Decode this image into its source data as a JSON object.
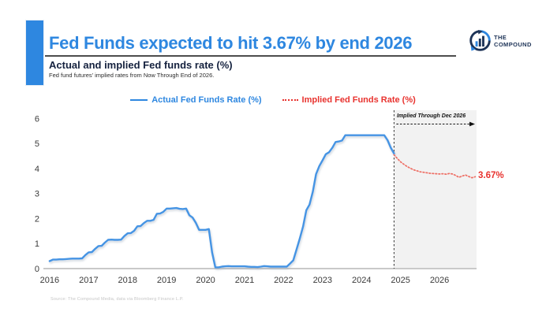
{
  "header": {
    "title": "Fed Funds expected to hit 3.67% by end 2026",
    "subtitle": "Actual and implied Fed funds rate (%)",
    "description": "Fed fund futures' implied rates from Now Through End of 2026."
  },
  "logo": {
    "line1": "THE",
    "line2": "COMPOUND"
  },
  "legend": {
    "actual_label": "Actual Fed Funds Rate (%)",
    "implied_label": "Implied Fed Funds Rate (%)"
  },
  "annotation": {
    "region_label": "Implied Through Dec 2026",
    "end_label": "3.67%"
  },
  "source": "Source: The Compound Media, data via Bloomberg Finance L.P.",
  "colors": {
    "accent_blue": "#2e87e0",
    "line_blue": "#4494e4",
    "label_red": "#e8322e",
    "dotted_red": "#ee6e64",
    "navy": "#15223f",
    "region_gray": "#f2f2f2",
    "axis_gray": "#c9c9c9",
    "divider_dark": "#333333"
  },
  "chart_data": {
    "type": "line",
    "title": "Actual and implied Fed funds rate (%)",
    "xlabel": "",
    "ylabel": "",
    "xlim": [
      2015.88,
      2026.95
    ],
    "ylim": [
      0,
      6
    ],
    "xticks": [
      2016,
      2017,
      2018,
      2019,
      2020,
      2021,
      2022,
      2023,
      2024,
      2025,
      2026
    ],
    "yticks": [
      0,
      1,
      2,
      3,
      4,
      5,
      6
    ],
    "grid": false,
    "legend_position": "top",
    "divider_x": 2024.833,
    "shaded_region": {
      "x_from": 2024.833,
      "x_to": 2026.95,
      "label": "Implied Through Dec 2026"
    },
    "series": [
      {
        "name": "Actual Fed Funds Rate (%)",
        "style": "solid",
        "color": "#4494e4",
        "x_start": 2016.0,
        "x_step": 0.08333,
        "y": [
          0.3,
          0.36,
          0.36,
          0.37,
          0.37,
          0.38,
          0.39,
          0.4,
          0.4,
          0.4,
          0.41,
          0.54,
          0.65,
          0.66,
          0.79,
          0.9,
          0.91,
          1.04,
          1.15,
          1.16,
          1.15,
          1.15,
          1.16,
          1.3,
          1.41,
          1.42,
          1.51,
          1.69,
          1.7,
          1.82,
          1.91,
          1.91,
          1.95,
          2.19,
          2.2,
          2.27,
          2.4,
          2.4,
          2.41,
          2.42,
          2.39,
          2.38,
          2.4,
          2.13,
          2.04,
          1.83,
          1.55,
          1.55,
          1.55,
          1.58,
          0.65,
          0.05,
          0.05,
          0.08,
          0.09,
          0.1,
          0.09,
          0.09,
          0.09,
          0.09,
          0.09,
          0.08,
          0.07,
          0.07,
          0.06,
          0.08,
          0.1,
          0.09,
          0.08,
          0.08,
          0.08,
          0.08,
          0.08,
          0.08,
          0.2,
          0.33,
          0.77,
          1.21,
          1.68,
          2.33,
          2.56,
          3.08,
          3.78,
          4.1,
          4.33,
          4.57,
          4.65,
          4.83,
          5.06,
          5.08,
          5.12,
          5.33,
          5.33,
          5.33,
          5.33,
          5.33,
          5.33,
          5.33,
          5.33,
          5.33,
          5.33,
          5.33,
          5.33,
          5.33,
          5.13,
          4.83,
          4.6
        ]
      },
      {
        "name": "Implied Fed Funds Rate (%)",
        "style": "dotted",
        "color": "#ee6e64",
        "x_start": 2024.833,
        "x_step": 0.08333,
        "y": [
          4.55,
          4.4,
          4.27,
          4.17,
          4.08,
          4.01,
          3.95,
          3.91,
          3.87,
          3.85,
          3.83,
          3.81,
          3.8,
          3.79,
          3.78,
          3.79,
          3.77,
          3.8,
          3.78,
          3.72,
          3.65,
          3.7,
          3.74,
          3.68,
          3.63,
          3.67
        ]
      }
    ]
  }
}
